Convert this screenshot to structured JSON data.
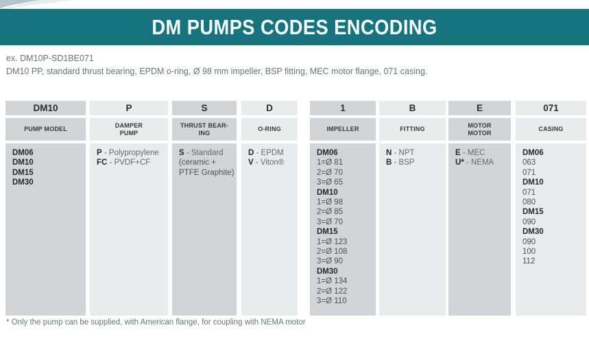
{
  "header": {
    "title": "DM PUMPS CODES ENCODING"
  },
  "example": {
    "code_line": "ex. DM10P-SD1BE071",
    "description": "DM10 PP, standard thrust bearing, EPDM o-ring, Ø 98 mm impeller, BSP fitting, MEC motor flange, 071 casing."
  },
  "footnote": "* Only the pump can be supplied, with American flange, for coupling with NEMA motor",
  "colors": {
    "teal_banner": "#17747f",
    "dark_cell": "#d2d5d7",
    "light_cell": "#e9ebec",
    "grey_text": "#6b7175",
    "dark_text": "#26292b"
  },
  "table": {
    "columns": [
      {
        "code": "DM10",
        "label_lines": [
          "PUMP MODEL"
        ],
        "shade": "dark",
        "lines": [
          {
            "type": "head",
            "text": "DM06"
          },
          {
            "type": "head",
            "text": "DM10"
          },
          {
            "type": "head",
            "text": "DM15"
          },
          {
            "type": "head",
            "text": "DM30"
          }
        ]
      },
      {
        "code": "P",
        "label_lines": [
          "DAMPER",
          "PUMP"
        ],
        "shade": "light",
        "lines": [
          {
            "type": "pair",
            "code": "P",
            "desc": "Polypropylene"
          },
          {
            "type": "pair",
            "code": "FC",
            "desc": "PVDF+CF"
          }
        ]
      },
      {
        "code": "S",
        "label_lines": [
          "THRUST BEAR-",
          "ING"
        ],
        "shade": "dark",
        "lines": [
          {
            "type": "pair",
            "code": "S",
            "desc": "Standard"
          },
          {
            "type": "value",
            "text": "(ceramic +"
          },
          {
            "type": "value",
            "text": "PTFE Graphite)"
          }
        ]
      },
      {
        "code": "D",
        "label_lines": [
          "O-RING"
        ],
        "shade": "light",
        "lines": [
          {
            "type": "pair",
            "code": "D",
            "desc": "EPDM"
          },
          {
            "type": "pair",
            "code": "V",
            "desc": "Viton®"
          }
        ]
      },
      {
        "code": "1",
        "label_lines": [
          "IMPELLER"
        ],
        "shade": "dark",
        "lines": [
          {
            "type": "head",
            "text": "DM06"
          },
          {
            "type": "value",
            "text": "1=Ø 81"
          },
          {
            "type": "value",
            "text": "2=Ø 70"
          },
          {
            "type": "value",
            "text": "3=Ø 65"
          },
          {
            "type": "head",
            "text": "DM10"
          },
          {
            "type": "value",
            "text": "1=Ø 98"
          },
          {
            "type": "value",
            "text": "2=Ø 85"
          },
          {
            "type": "value",
            "text": "3=Ø 70"
          },
          {
            "type": "head",
            "text": "DM15"
          },
          {
            "type": "value",
            "text": "1=Ø 123"
          },
          {
            "type": "value",
            "text": "2=Ø 108"
          },
          {
            "type": "value",
            "text": "3=Ø 90"
          },
          {
            "type": "head",
            "text": "DM30"
          },
          {
            "type": "value",
            "text": "1=Ø 134"
          },
          {
            "type": "value",
            "text": "2=Ø 122"
          },
          {
            "type": "value",
            "text": "3=Ø 110"
          }
        ]
      },
      {
        "code": "B",
        "label_lines": [
          "FITTING"
        ],
        "shade": "light",
        "lines": [
          {
            "type": "pair",
            "code": "N",
            "desc": "NPT"
          },
          {
            "type": "pair",
            "code": "B",
            "desc": "BSP"
          }
        ]
      },
      {
        "code": "E",
        "label_lines": [
          "MOTOR",
          "MOTOR"
        ],
        "shade": "dark",
        "lines": [
          {
            "type": "pair",
            "code": "E",
            "desc": "MEC"
          },
          {
            "type": "pair",
            "code": "U*",
            "desc": "NEMA"
          }
        ]
      },
      {
        "code": "071",
        "label_lines": [
          "CASING"
        ],
        "shade": "light",
        "lines": [
          {
            "type": "head",
            "text": "DM06"
          },
          {
            "type": "value",
            "text": "063"
          },
          {
            "type": "value",
            "text": "071"
          },
          {
            "type": "head",
            "text": "DM10"
          },
          {
            "type": "value",
            "text": "071"
          },
          {
            "type": "value",
            "text": "080"
          },
          {
            "type": "head",
            "text": "DM15"
          },
          {
            "type": "value",
            "text": "090"
          },
          {
            "type": "head",
            "text": "DM30"
          },
          {
            "type": "value",
            "text": "090"
          },
          {
            "type": "value",
            "text": "100"
          },
          {
            "type": "value",
            "text": "112"
          }
        ]
      }
    ]
  }
}
